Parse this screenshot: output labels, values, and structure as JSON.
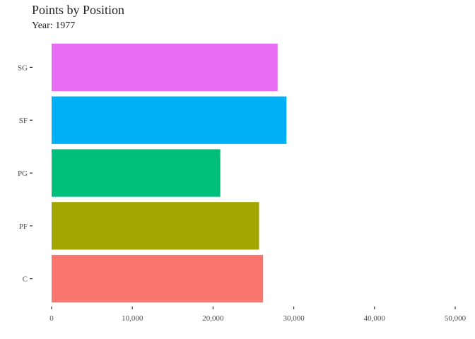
{
  "chart_data": {
    "type": "bar",
    "orientation": "horizontal",
    "title": "Points by Position",
    "subtitle": "Year: 1977",
    "xlabel": "",
    "ylabel": "",
    "categories": [
      "C",
      "PF",
      "PG",
      "SF",
      "SG"
    ],
    "values": [
      26200,
      25700,
      20900,
      29100,
      28000
    ],
    "colors": [
      "#F8766D",
      "#A3A500",
      "#00BF7D",
      "#00B0F6",
      "#E76BF3"
    ],
    "xlim": [
      0,
      50000
    ],
    "x_ticks": [
      0,
      10000,
      20000,
      30000,
      40000,
      50000
    ],
    "x_tick_labels": [
      "0",
      "10,000",
      "20,000",
      "30,000",
      "40,000",
      "50,000"
    ],
    "grid": false,
    "legend": "none"
  }
}
